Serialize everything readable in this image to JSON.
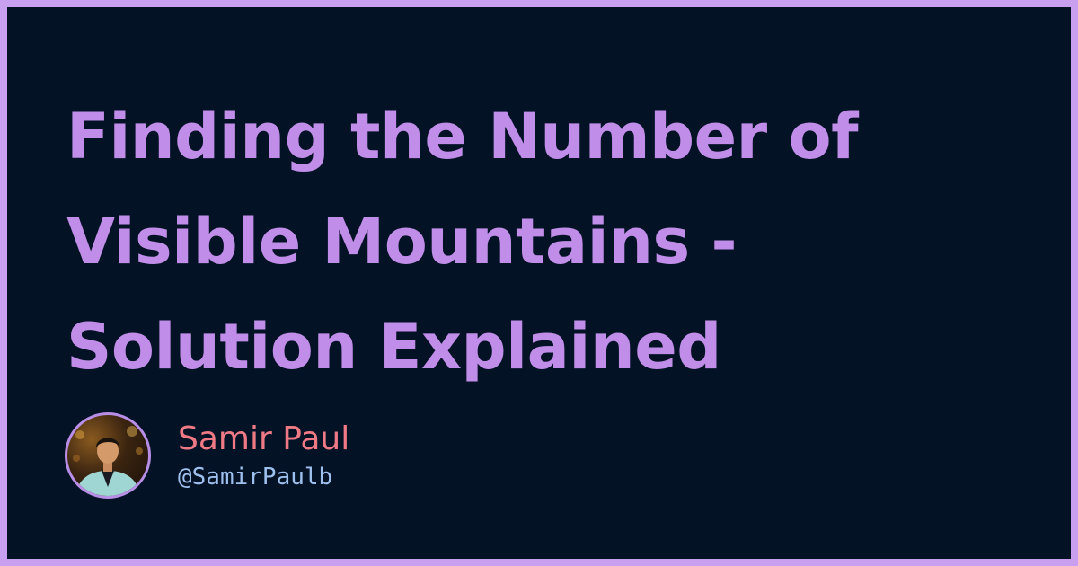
{
  "title": {
    "lines": [
      "Finding the Number of",
      "Visible Mountains -",
      "Solution Explained"
    ]
  },
  "author": {
    "name": "Samir Paul",
    "handle": "@SamirPaulb"
  },
  "colors": {
    "frame": "#c9a0f0",
    "background": "#041226",
    "title": "#c08ee8",
    "name": "#ef7a85",
    "handle": "#9dc0ee"
  },
  "avatar": {
    "icon": "person-photo-icon"
  }
}
